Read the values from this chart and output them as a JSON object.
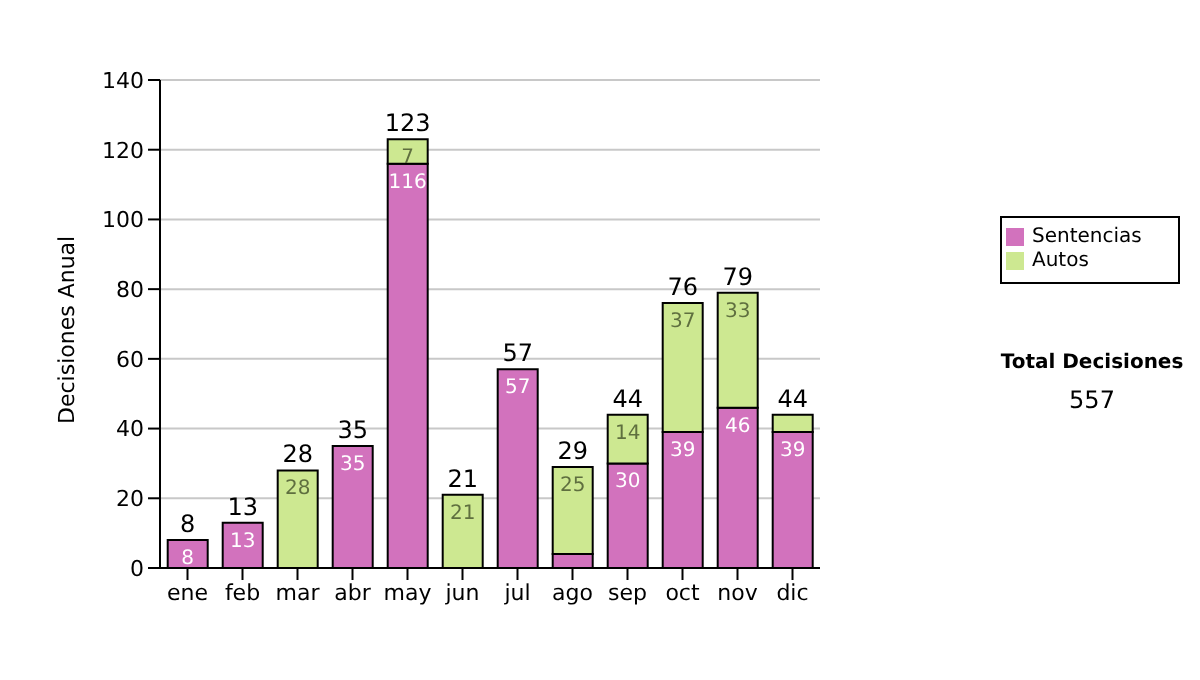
{
  "chart_data": {
    "type": "bar",
    "stacked": true,
    "ylabel": "Decisiones Anual",
    "categories": [
      "ene",
      "feb",
      "mar",
      "abr",
      "may",
      "jun",
      "jul",
      "ago",
      "sep",
      "oct",
      "nov",
      "dic"
    ],
    "series": [
      {
        "name": "Sentencias",
        "color": "#d272bd",
        "values": [
          8,
          13,
          0,
          35,
          116,
          0,
          57,
          4,
          30,
          39,
          46,
          39
        ],
        "value_labels": [
          "8",
          "13",
          null,
          "35",
          "116",
          null,
          "57",
          null,
          "30",
          "39",
          "46",
          "39"
        ]
      },
      {
        "name": "Autos",
        "color": "#cde891",
        "values": [
          0,
          0,
          28,
          0,
          7,
          21,
          0,
          25,
          14,
          37,
          33,
          5
        ],
        "value_labels": [
          null,
          null,
          "28",
          null,
          "7",
          "21",
          null,
          "25",
          "14",
          "37",
          "33",
          null
        ]
      }
    ],
    "totals": [
      "8",
      "13",
      "28",
      "35",
      "123",
      "21",
      "57",
      "29",
      "44",
      "76",
      "79",
      "44"
    ],
    "ylim": [
      0,
      140
    ],
    "yticks": [
      0,
      20,
      40,
      60,
      80,
      100,
      120,
      140
    ],
    "grid": "y",
    "legend": "right",
    "annotations": [
      "Total Decisiones",
      "557"
    ]
  }
}
